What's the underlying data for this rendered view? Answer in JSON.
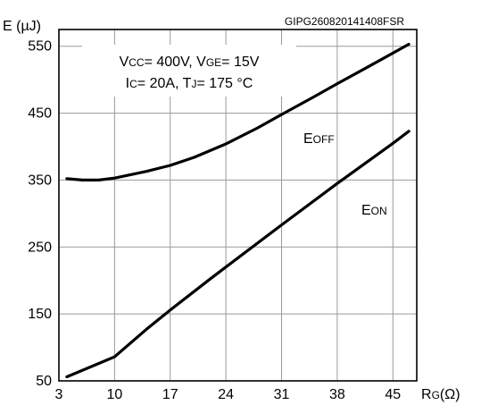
{
  "chart_data": {
    "type": "line",
    "ylabel": "E (µJ)",
    "xlabel": {
      "main": "R",
      "sub": "G",
      "unit": "(Ω)"
    },
    "code": "GIPG260820141408FSR",
    "conditions": [
      [
        {
          "t": "V"
        },
        {
          "t": "CC",
          "sub": true
        },
        {
          "t": "= 400V, V"
        },
        {
          "t": "GE",
          "sub": true
        },
        {
          "t": "= 15V"
        }
      ],
      [
        {
          "t": "I"
        },
        {
          "t": "C",
          "sub": true
        },
        {
          "t": "= 20A, T"
        },
        {
          "t": "J",
          "sub": true
        },
        {
          "t": "= 175 °C"
        }
      ]
    ],
    "xlim": [
      3,
      48
    ],
    "ylim": [
      50,
      575
    ],
    "xticks": [
      3,
      10,
      17,
      24,
      31,
      38,
      45
    ],
    "yticks": [
      50,
      150,
      250,
      350,
      450,
      550
    ],
    "grid": true,
    "series": [
      {
        "name": "EOFF",
        "label": {
          "main": "E",
          "sub": "OFF"
        },
        "x": [
          4,
          6,
          8,
          10,
          12,
          14,
          17,
          20,
          24,
          28,
          31,
          35,
          38,
          42,
          47
        ],
        "y": [
          352,
          350,
          350,
          353,
          358,
          363,
          372,
          384,
          404,
          428,
          448,
          474,
          494,
          520,
          553
        ]
      },
      {
        "name": "EON",
        "label": {
          "main": "E",
          "sub": "ON"
        },
        "x": [
          4,
          10,
          14,
          17,
          22,
          24,
          31,
          38,
          45,
          47
        ],
        "y": [
          56,
          86,
          127,
          156,
          202,
          220,
          283,
          345,
          405,
          423
        ]
      }
    ]
  }
}
